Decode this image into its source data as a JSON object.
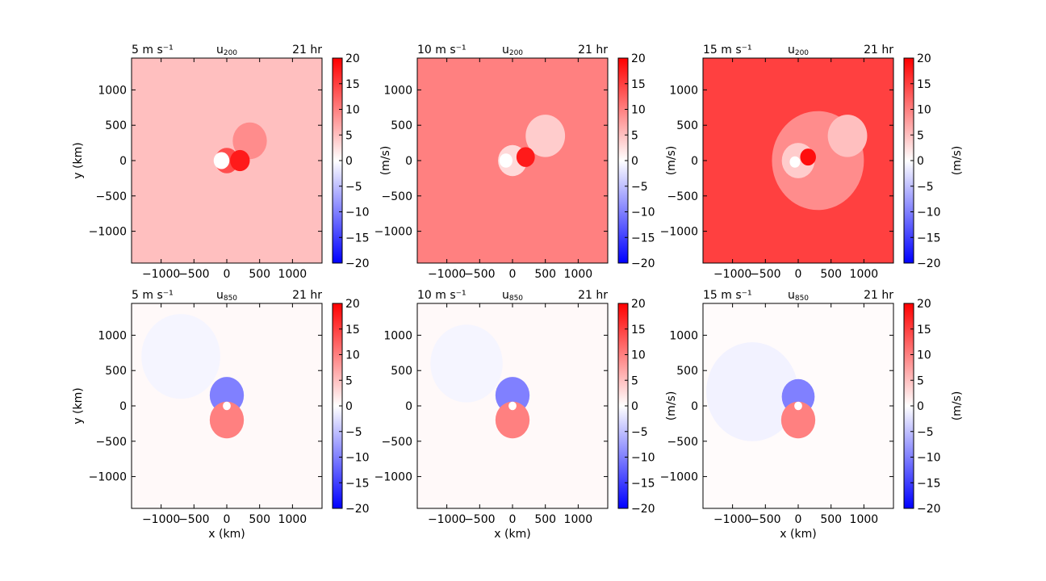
{
  "figure": {
    "xlabel": "x (km)",
    "ylabel": "y (km)",
    "cbar_label": "(m/s)",
    "colormap": {
      "negative": "#0000ff",
      "zero": "#ffffff",
      "positive": "#ff0000"
    }
  },
  "chart_data": [
    {
      "type": "heatmap",
      "panel": "top-left",
      "left_label": "5 m s⁻¹",
      "center_label_base": "u",
      "center_label_sub": "200",
      "right_label": "21 hr",
      "xlim": [
        -1450,
        1450
      ],
      "ylim": [
        -1450,
        1450
      ],
      "xticks": [
        -1000,
        -500,
        0,
        500,
        1000
      ],
      "yticks": [
        -1000,
        -500,
        0,
        500,
        1000
      ],
      "xtick_labels": [
        "−1000",
        "−500",
        "0",
        "500",
        "1000"
      ],
      "ytick_labels": [
        "−1000",
        "−500",
        "0",
        "500",
        "1000"
      ],
      "show_xlabel": false,
      "show_ylabel": true,
      "show_cbar_label": true,
      "colorbar": {
        "range": [
          -20,
          20
        ],
        "ticks": [
          20,
          15,
          10,
          5,
          0,
          -5,
          -10,
          -15,
          -20
        ],
        "tick_labels": [
          "20",
          "15",
          "10",
          "5",
          "0",
          "−5",
          "−10",
          "−15",
          "−20"
        ]
      },
      "background_value": 5,
      "features": [
        {
          "x": 0,
          "y": 0,
          "r": 180,
          "value": 14
        },
        {
          "x": 350,
          "y": 280,
          "r": 260,
          "value": 9
        },
        {
          "x": 200,
          "y": 0,
          "r": 150,
          "value": 18
        },
        {
          "x": -80,
          "y": 0,
          "r": 120,
          "value": 0
        }
      ]
    },
    {
      "type": "heatmap",
      "panel": "top-middle",
      "left_label": "10 m s⁻¹",
      "center_label_base": "u",
      "center_label_sub": "200",
      "right_label": "21 hr",
      "xlim": [
        -1450,
        1450
      ],
      "ylim": [
        -1450,
        1450
      ],
      "xticks": [
        -1000,
        -500,
        0,
        500,
        1000
      ],
      "yticks": [
        -1000,
        -500,
        0,
        500,
        1000
      ],
      "xtick_labels": [
        "−1000",
        "−500",
        "0",
        "500",
        "1000"
      ],
      "ytick_labels": [
        "−1000",
        "−500",
        "0",
        "500",
        "1000"
      ],
      "show_xlabel": false,
      "show_ylabel": false,
      "show_cbar_label": true,
      "colorbar": {
        "range": [
          -20,
          20
        ],
        "ticks": [
          20,
          15,
          10,
          5,
          0,
          -5,
          -10,
          -15,
          -20
        ],
        "tick_labels": [
          "20",
          "15",
          "10",
          "5",
          "0",
          "−5",
          "−10",
          "−15",
          "−20"
        ]
      },
      "background_value": 10,
      "features": [
        {
          "x": 500,
          "y": 350,
          "r": 300,
          "value": 4
        },
        {
          "x": 0,
          "y": 0,
          "r": 220,
          "value": 3
        },
        {
          "x": 200,
          "y": 50,
          "r": 140,
          "value": 18
        },
        {
          "x": -100,
          "y": 0,
          "r": 100,
          "value": 0
        }
      ]
    },
    {
      "type": "heatmap",
      "panel": "top-right",
      "left_label": "15 m s⁻¹",
      "center_label_base": "u",
      "center_label_sub": "200",
      "right_label": "21 hr",
      "xlim": [
        -1450,
        1450
      ],
      "ylim": [
        -1450,
        1450
      ],
      "xticks": [
        -1000,
        -500,
        0,
        500,
        1000
      ],
      "yticks": [
        -1000,
        -500,
        0,
        500,
        1000
      ],
      "xtick_labels": [
        "−1000",
        "−500",
        "0",
        "500",
        "1000"
      ],
      "ytick_labels": [
        "−1000",
        "−500",
        "0",
        "500",
        "1000"
      ],
      "show_xlabel": false,
      "show_ylabel": false,
      "show_cbar_label": true,
      "colorbar": {
        "range": [
          -20,
          20
        ],
        "ticks": [
          20,
          15,
          10,
          5,
          0,
          -5,
          -10,
          -15,
          -20
        ],
        "tick_labels": [
          "20",
          "15",
          "10",
          "5",
          "0",
          "−5",
          "−10",
          "−15",
          "−20"
        ]
      },
      "background_value": 15,
      "features": [
        {
          "x": 300,
          "y": 0,
          "r": 700,
          "value": 9
        },
        {
          "x": 750,
          "y": 350,
          "r": 300,
          "value": 5
        },
        {
          "x": 0,
          "y": 0,
          "r": 250,
          "value": 4
        },
        {
          "x": 150,
          "y": 50,
          "r": 120,
          "value": 19
        },
        {
          "x": -50,
          "y": -20,
          "r": 80,
          "value": 0
        }
      ]
    },
    {
      "type": "heatmap",
      "panel": "bottom-left",
      "left_label": "5 m s⁻¹",
      "center_label_base": "u",
      "center_label_sub": "850",
      "right_label": "21 hr",
      "xlim": [
        -1450,
        1450
      ],
      "ylim": [
        -1450,
        1450
      ],
      "xticks": [
        -1000,
        -500,
        0,
        500,
        1000
      ],
      "yticks": [
        -1000,
        -500,
        0,
        500,
        1000
      ],
      "xtick_labels": [
        "−1000",
        "−500",
        "0",
        "500",
        "1000"
      ],
      "ytick_labels": [
        "−1000",
        "−500",
        "0",
        "500",
        "1000"
      ],
      "show_xlabel": true,
      "show_ylabel": true,
      "show_cbar_label": false,
      "colorbar": {
        "range": [
          -20,
          20
        ],
        "ticks": [
          20,
          15,
          10,
          5,
          0,
          -5,
          -10,
          -15,
          -20
        ],
        "tick_labels": [
          "20",
          "15",
          "10",
          "5",
          "0",
          "−5",
          "−10",
          "−15",
          "−20"
        ]
      },
      "background_value": 0.5,
      "features": [
        {
          "x": -700,
          "y": 700,
          "r": 600,
          "value": -0.8
        },
        {
          "x": 0,
          "y": 150,
          "r": 260,
          "value": -10
        },
        {
          "x": 0,
          "y": -200,
          "r": 260,
          "value": 10
        },
        {
          "x": 0,
          "y": 0,
          "r": 60,
          "value": 0
        }
      ]
    },
    {
      "type": "heatmap",
      "panel": "bottom-middle",
      "left_label": "10 m s⁻¹",
      "center_label_base": "u",
      "center_label_sub": "850",
      "right_label": "21 hr",
      "xlim": [
        -1450,
        1450
      ],
      "ylim": [
        -1450,
        1450
      ],
      "xticks": [
        -1000,
        -500,
        0,
        500,
        1000
      ],
      "yticks": [
        -1000,
        -500,
        0,
        500,
        1000
      ],
      "xtick_labels": [
        "−1000",
        "−500",
        "0",
        "500",
        "1000"
      ],
      "ytick_labels": [
        "−1000",
        "−500",
        "0",
        "500",
        "1000"
      ],
      "show_xlabel": true,
      "show_ylabel": false,
      "show_cbar_label": true,
      "colorbar": {
        "range": [
          -20,
          20
        ],
        "ticks": [
          20,
          15,
          10,
          5,
          0,
          -5,
          -10,
          -15,
          -20
        ],
        "tick_labels": [
          "20",
          "15",
          "10",
          "5",
          "0",
          "−5",
          "−10",
          "−15",
          "−20"
        ]
      },
      "background_value": 0.5,
      "features": [
        {
          "x": -700,
          "y": 600,
          "r": 550,
          "value": -0.8
        },
        {
          "x": 0,
          "y": 150,
          "r": 260,
          "value": -10
        },
        {
          "x": 0,
          "y": -200,
          "r": 260,
          "value": 10
        },
        {
          "x": 0,
          "y": 0,
          "r": 60,
          "value": 0
        }
      ]
    },
    {
      "type": "heatmap",
      "panel": "bottom-right",
      "left_label": "15 m s⁻¹",
      "center_label_base": "u",
      "center_label_sub": "850",
      "right_label": "21 hr",
      "xlim": [
        -1450,
        1450
      ],
      "ylim": [
        -1450,
        1450
      ],
      "xticks": [
        -1000,
        -500,
        0,
        500,
        1000
      ],
      "yticks": [
        -1000,
        -500,
        0,
        500,
        1000
      ],
      "xtick_labels": [
        "−1000",
        "−500",
        "0",
        "500",
        "1000"
      ],
      "ytick_labels": [
        "−1000",
        "−500",
        "0",
        "500",
        "1000"
      ],
      "show_xlabel": true,
      "show_ylabel": false,
      "show_cbar_label": true,
      "colorbar": {
        "range": [
          -20,
          20
        ],
        "ticks": [
          20,
          15,
          10,
          5,
          0,
          -5,
          -10,
          -15,
          -20
        ],
        "tick_labels": [
          "20",
          "15",
          "10",
          "5",
          "0",
          "−5",
          "−10",
          "−15",
          "−20"
        ]
      },
      "background_value": 0.3,
      "features": [
        {
          "x": -700,
          "y": 200,
          "r": 700,
          "value": -1
        },
        {
          "x": 0,
          "y": 130,
          "r": 250,
          "value": -10
        },
        {
          "x": 0,
          "y": -200,
          "r": 260,
          "value": 10
        },
        {
          "x": 0,
          "y": 0,
          "r": 60,
          "value": 0
        }
      ]
    }
  ]
}
